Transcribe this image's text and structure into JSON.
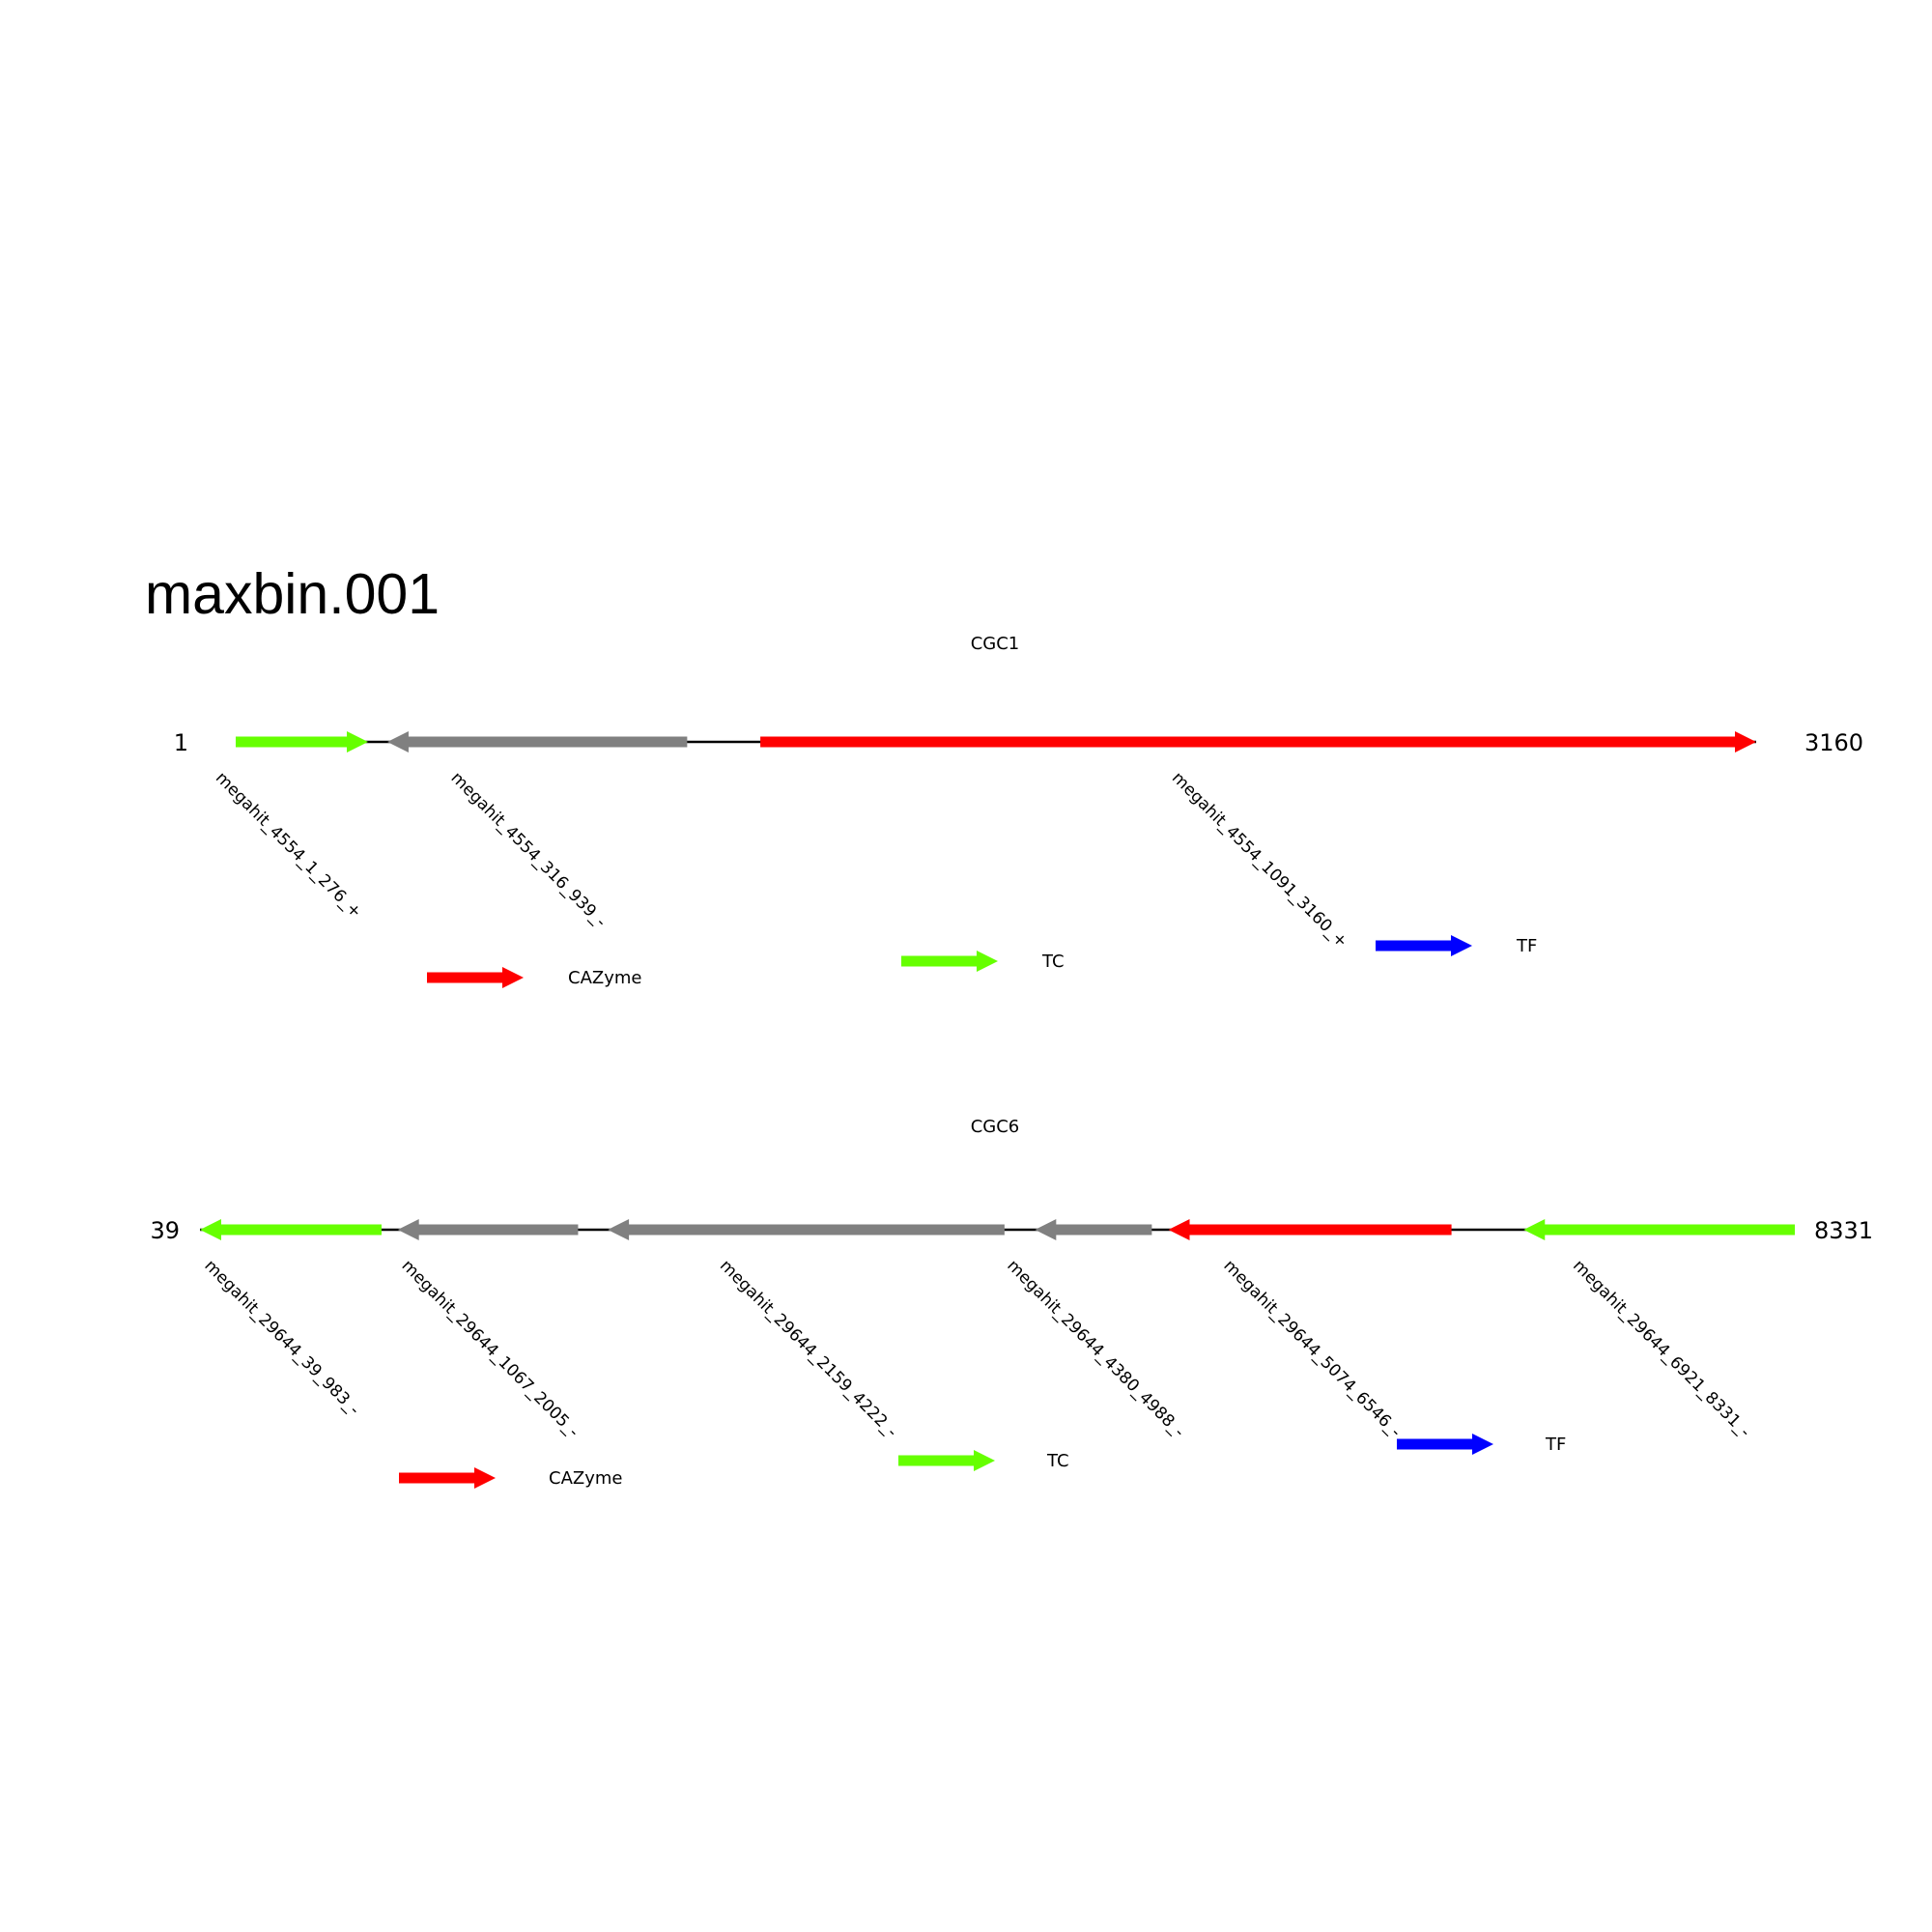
{
  "title": "maxbin.001",
  "colors": {
    "CAZyme": "#ff0000",
    "TC": "#66ff00",
    "TF": "#0000ff",
    "other": "#808080",
    "backbone": "#000000"
  },
  "legend": [
    {
      "label": "CAZyme",
      "type": "CAZyme"
    },
    {
      "label": "TC",
      "type": "TC"
    },
    {
      "label": "TF",
      "type": "TF"
    }
  ],
  "clusters": [
    {
      "name": "CGC1",
      "start_label": "1",
      "end_label": "3160",
      "start": 1,
      "end": 3160,
      "genes": [
        {
          "label": "megahit_4554_1_276_+",
          "start": 1,
          "end": 276,
          "strand": "+",
          "type": "TC"
        },
        {
          "label": "megahit_4554_316_939_-",
          "start": 316,
          "end": 939,
          "strand": "-",
          "type": "other"
        },
        {
          "label": "megahit_4554_1091_3160_+",
          "start": 1091,
          "end": 3160,
          "strand": "+",
          "type": "CAZyme"
        }
      ]
    },
    {
      "name": "CGC6",
      "start_label": "39",
      "end_label": "8331",
      "start": 39,
      "end": 8331,
      "genes": [
        {
          "label": "megahit_29644_39_983_-",
          "start": 39,
          "end": 983,
          "strand": "-",
          "type": "TC"
        },
        {
          "label": "megahit_29644_1067_2005_-",
          "start": 1067,
          "end": 2005,
          "strand": "-",
          "type": "other"
        },
        {
          "label": "megahit_29644_2159_4222_-",
          "start": 2159,
          "end": 4222,
          "strand": "-",
          "type": "other"
        },
        {
          "label": "megahit_29644_4380_4988_-",
          "start": 4380,
          "end": 4988,
          "strand": "-",
          "type": "other"
        },
        {
          "label": "megahit_29644_5074_6546_-",
          "start": 5074,
          "end": 6546,
          "strand": "-",
          "type": "CAZyme"
        },
        {
          "label": "megahit_29644_6921_8331_-",
          "start": 6921,
          "end": 8331,
          "strand": "-",
          "type": "TC"
        }
      ]
    }
  ]
}
